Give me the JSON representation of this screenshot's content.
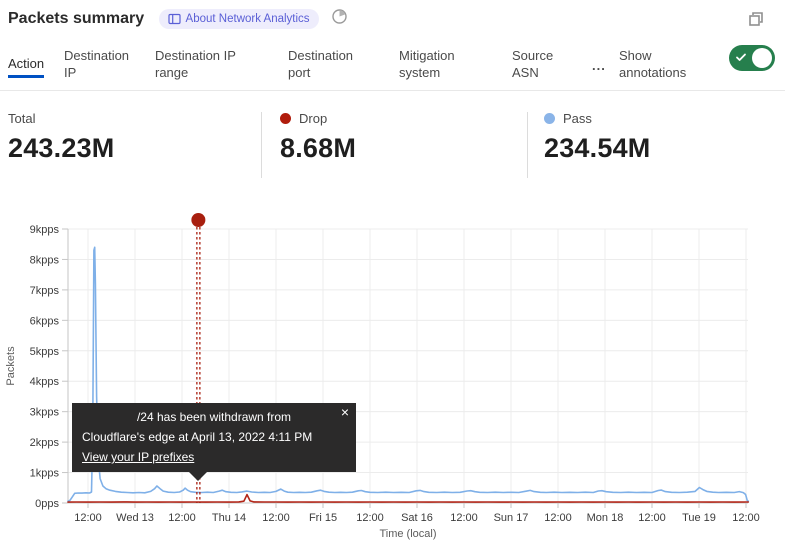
{
  "header": {
    "title": "Packets summary",
    "about_badge": "About Network Analytics"
  },
  "tabs": {
    "items": [
      {
        "label": "Action",
        "active": true
      },
      {
        "label": "Destination IP",
        "active": false
      },
      {
        "label": "Destination IP range",
        "active": false
      },
      {
        "label": "Destination port",
        "active": false
      },
      {
        "label": "Mitigation system",
        "active": false
      },
      {
        "label": "Source ASN",
        "active": false
      }
    ],
    "overflow": "...",
    "show_annotations_label": "Show annotations",
    "annotations_on": true
  },
  "stats": {
    "total": {
      "label": "Total",
      "value": "243.23M"
    },
    "drop": {
      "label": "Drop",
      "value": "8.68M"
    },
    "pass": {
      "label": "Pass",
      "value": "234.54M"
    }
  },
  "annotation_tooltip": {
    "line1": "/24 has been withdrawn from",
    "line2": "Cloudflare's edge at April 13, 2022 4:11 PM",
    "link": "View your IP prefixes",
    "close": "×"
  },
  "colors": {
    "accent_blue": "#0051c3",
    "toggle_green": "#267f4d",
    "badge_bg": "#eeedfc",
    "badge_text": "#5a5fd6",
    "drop_red": "#b32618",
    "pass_blue": "#7fb0e8",
    "annotation_red": "#a81f0f"
  },
  "chart_data": {
    "type": "line",
    "title": "Packets summary",
    "xlabel": "Time (local)",
    "ylabel": "Packets",
    "ylim": [
      0,
      9000
    ],
    "y_unit": "pps",
    "x_unit": "hours since first tick (12:00 Tue Apr 12, 2022)",
    "grid": true,
    "legend_position": "top-stats",
    "x_ticks": [
      {
        "h": 0,
        "label": "12:00"
      },
      {
        "h": 12,
        "label": "Wed 13"
      },
      {
        "h": 24,
        "label": "12:00"
      },
      {
        "h": 36,
        "label": "Thu 14"
      },
      {
        "h": 48,
        "label": "12:00"
      },
      {
        "h": 60,
        "label": "Fri 15"
      },
      {
        "h": 72,
        "label": "12:00"
      },
      {
        "h": 84,
        "label": "Sat 16"
      },
      {
        "h": 96,
        "label": "12:00"
      },
      {
        "h": 108,
        "label": "Sun 17"
      },
      {
        "h": 120,
        "label": "12:00"
      },
      {
        "h": 132,
        "label": "Mon 18"
      },
      {
        "h": 144,
        "label": "12:00"
      },
      {
        "h": 156,
        "label": "Tue 19"
      },
      {
        "h": 168,
        "label": "12:00"
      }
    ],
    "y_ticks": [
      {
        "pps": 9000,
        "label": "9kpps"
      },
      {
        "pps": 8000,
        "label": "8kpps"
      },
      {
        "pps": 7000,
        "label": "7kpps"
      },
      {
        "pps": 6000,
        "label": "6kpps"
      },
      {
        "pps": 5000,
        "label": "5kpps"
      },
      {
        "pps": 4000,
        "label": "4kpps"
      },
      {
        "pps": 3000,
        "label": "3kpps"
      },
      {
        "pps": 2000,
        "label": "2kpps"
      },
      {
        "pps": 1000,
        "label": "1kpps"
      },
      {
        "pps": 0,
        "label": "0pps"
      }
    ],
    "annotation": {
      "h": 28.18,
      "time": "April 13, 2022 4:11 PM",
      "color": "#a81f0f"
    },
    "series": [
      {
        "name": "Pass",
        "color": "#7fb0e8",
        "points": [
          [
            -5.1,
            60
          ],
          [
            -4.6,
            90
          ],
          [
            -4.0,
            200
          ],
          [
            -3.4,
            320
          ],
          [
            -2.5,
            330
          ],
          [
            -1.5,
            325
          ],
          [
            -0.5,
            335
          ],
          [
            0.4,
            330
          ],
          [
            0.9,
            360
          ],
          [
            1.2,
            2200
          ],
          [
            1.5,
            8300
          ],
          [
            1.7,
            8400
          ],
          [
            1.9,
            7200
          ],
          [
            2.2,
            3500
          ],
          [
            2.6,
            1500
          ],
          [
            3.1,
            800
          ],
          [
            3.8,
            560
          ],
          [
            4.6,
            470
          ],
          [
            5.6,
            420
          ],
          [
            7,
            380
          ],
          [
            8.5,
            355
          ],
          [
            10,
            345
          ],
          [
            11.5,
            335
          ],
          [
            13,
            345
          ],
          [
            14.5,
            335
          ],
          [
            16,
            380
          ],
          [
            17,
            470
          ],
          [
            17.6,
            560
          ],
          [
            18.4,
            470
          ],
          [
            19.2,
            390
          ],
          [
            20.5,
            355
          ],
          [
            22,
            345
          ],
          [
            23.4,
            360
          ],
          [
            24.3,
            420
          ],
          [
            24.8,
            490
          ],
          [
            25.4,
            420
          ],
          [
            26.2,
            370
          ],
          [
            27.5,
            350
          ],
          [
            29,
            345
          ],
          [
            30.5,
            355
          ],
          [
            32,
            345
          ],
          [
            33.5,
            390
          ],
          [
            34.3,
            420
          ],
          [
            35.2,
            370
          ],
          [
            36.5,
            350
          ],
          [
            38,
            345
          ],
          [
            39.3,
            365
          ],
          [
            40.6,
            390
          ],
          [
            41.8,
            360
          ],
          [
            43.5,
            345
          ],
          [
            45,
            350
          ],
          [
            46.5,
            345
          ],
          [
            48,
            380
          ],
          [
            49.2,
            455
          ],
          [
            50.1,
            390
          ],
          [
            51,
            355
          ],
          [
            52.5,
            345
          ],
          [
            54,
            350
          ],
          [
            55.5,
            345
          ],
          [
            57,
            355
          ],
          [
            58.5,
            400
          ],
          [
            59.4,
            420
          ],
          [
            60.3,
            380
          ],
          [
            61.5,
            355
          ],
          [
            63,
            345
          ],
          [
            64.5,
            350
          ],
          [
            66,
            345
          ],
          [
            67.5,
            355
          ],
          [
            69,
            400
          ],
          [
            69.8,
            410
          ],
          [
            70.8,
            370
          ],
          [
            72,
            350
          ],
          [
            74,
            345
          ],
          [
            76,
            355
          ],
          [
            78,
            345
          ],
          [
            80,
            350
          ],
          [
            82,
            345
          ],
          [
            83.8,
            400
          ],
          [
            84.8,
            415
          ],
          [
            85.8,
            375
          ],
          [
            87,
            350
          ],
          [
            89,
            345
          ],
          [
            91,
            355
          ],
          [
            93,
            345
          ],
          [
            95,
            350
          ],
          [
            96.8,
            395
          ],
          [
            97.7,
            405
          ],
          [
            98.8,
            370
          ],
          [
            100,
            350
          ],
          [
            102,
            345
          ],
          [
            104,
            355
          ],
          [
            106,
            345
          ],
          [
            108,
            350
          ],
          [
            110,
            345
          ],
          [
            112,
            390
          ],
          [
            112.9,
            415
          ],
          [
            113.9,
            375
          ],
          [
            115.5,
            350
          ],
          [
            117,
            345
          ],
          [
            119,
            355
          ],
          [
            121,
            345
          ],
          [
            123,
            350
          ],
          [
            125,
            345
          ],
          [
            127,
            355
          ],
          [
            129,
            345
          ],
          [
            130.3,
            395
          ],
          [
            131.2,
            405
          ],
          [
            132.3,
            370
          ],
          [
            134,
            350
          ],
          [
            136,
            345
          ],
          [
            138,
            355
          ],
          [
            140,
            345
          ],
          [
            142,
            350
          ],
          [
            144,
            345
          ],
          [
            145.6,
            410
          ],
          [
            146.4,
            425
          ],
          [
            147.4,
            375
          ],
          [
            149,
            350
          ],
          [
            151,
            345
          ],
          [
            153,
            355
          ],
          [
            155,
            380
          ],
          [
            156.1,
            510
          ],
          [
            157,
            440
          ],
          [
            158,
            380
          ],
          [
            159.5,
            355
          ],
          [
            161,
            345
          ],
          [
            163,
            350
          ],
          [
            165,
            345
          ],
          [
            166.3,
            375
          ],
          [
            167.3,
            340
          ],
          [
            167.9,
            280
          ],
          [
            168.3,
            90
          ],
          [
            168.6,
            60
          ]
        ]
      },
      {
        "name": "Drop",
        "color": "#b32618",
        "points": [
          [
            -5.1,
            28
          ],
          [
            -3,
            32
          ],
          [
            0,
            30
          ],
          [
            3,
            34
          ],
          [
            6,
            30
          ],
          [
            9,
            35
          ],
          [
            12,
            30
          ],
          [
            15,
            33
          ],
          [
            18,
            30
          ],
          [
            21,
            34
          ],
          [
            24,
            30
          ],
          [
            27,
            33
          ],
          [
            30,
            30
          ],
          [
            33,
            34
          ],
          [
            36,
            30
          ],
          [
            38.5,
            36
          ],
          [
            39.8,
            60
          ],
          [
            40.6,
            275
          ],
          [
            41.4,
            70
          ],
          [
            42.3,
            36
          ],
          [
            45,
            32
          ],
          [
            48,
            34
          ],
          [
            51,
            30
          ],
          [
            54,
            34
          ],
          [
            57,
            30
          ],
          [
            60,
            34
          ],
          [
            63,
            30
          ],
          [
            66,
            34
          ],
          [
            69,
            30
          ],
          [
            72,
            34
          ],
          [
            75,
            30
          ],
          [
            78,
            34
          ],
          [
            81,
            30
          ],
          [
            84,
            34
          ],
          [
            87,
            30
          ],
          [
            90,
            34
          ],
          [
            93,
            30
          ],
          [
            96,
            34
          ],
          [
            99,
            30
          ],
          [
            102,
            34
          ],
          [
            105,
            30
          ],
          [
            108,
            34
          ],
          [
            111,
            30
          ],
          [
            114,
            34
          ],
          [
            117,
            30
          ],
          [
            120,
            34
          ],
          [
            123,
            30
          ],
          [
            126,
            34
          ],
          [
            129,
            30
          ],
          [
            132,
            34
          ],
          [
            135,
            30
          ],
          [
            138,
            34
          ],
          [
            141,
            30
          ],
          [
            144,
            34
          ],
          [
            147,
            30
          ],
          [
            150,
            34
          ],
          [
            153,
            30
          ],
          [
            156,
            34
          ],
          [
            159,
            30
          ],
          [
            162,
            34
          ],
          [
            165,
            30
          ],
          [
            168.6,
            32
          ]
        ]
      }
    ]
  }
}
